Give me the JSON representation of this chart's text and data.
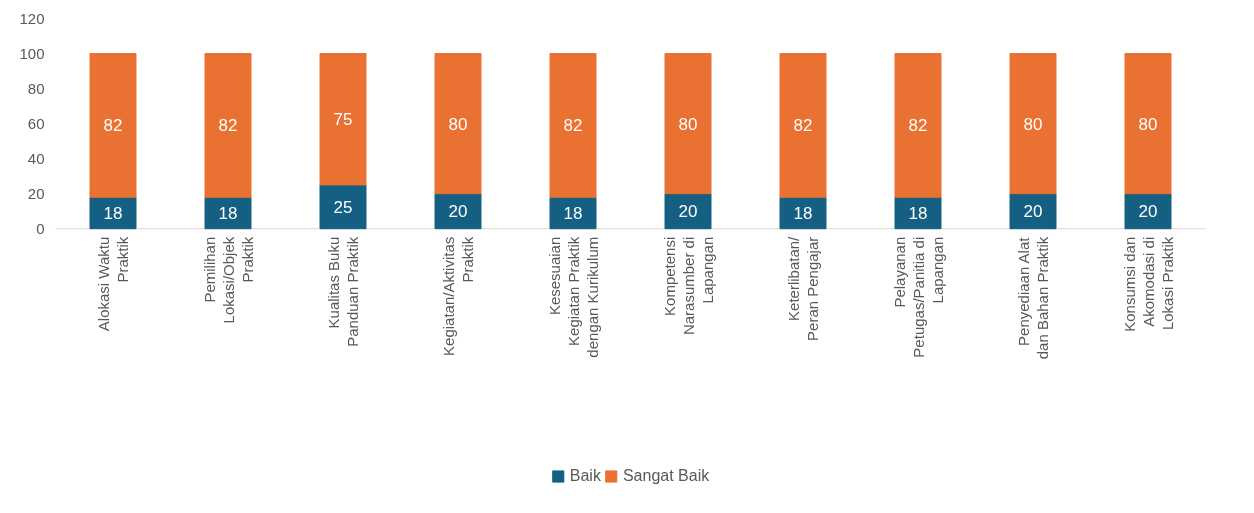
{
  "chart_data": {
    "type": "bar",
    "stacked": true,
    "categories": [
      "Alokasi Waktu Praktik",
      "Pemilihan Lokasi/Objek Praktik",
      "Kualitas Buku Panduan Praktik",
      "Kegiatan/Aktivitas Praktik",
      "Kesesuaian Kegiatan Praktik dengan Kurikulum",
      "Kompetensi Narasumber di Lapangan",
      "Keterlibatan/ Peran Pengajar",
      "Pelayanan Petugas/Panitia di Lapangan",
      "Penyediaan Alat dan Bahan Praktik",
      "Konsumsi dan Akomodasi di Lokasi Praktik"
    ],
    "series": [
      {
        "name": "Baik",
        "color": "#156082",
        "values": [
          18,
          18,
          25,
          20,
          18,
          20,
          18,
          18,
          20,
          20
        ]
      },
      {
        "name": "Sangat Baik",
        "color": "#e97132",
        "values": [
          82,
          82,
          75,
          80,
          82,
          80,
          82,
          82,
          80,
          80
        ]
      }
    ],
    "ylim": [
      0,
      120
    ],
    "yticks": [
      0,
      20,
      40,
      60,
      80,
      100,
      120
    ],
    "data_labels": true,
    "grid": false,
    "legend": "bottom"
  }
}
